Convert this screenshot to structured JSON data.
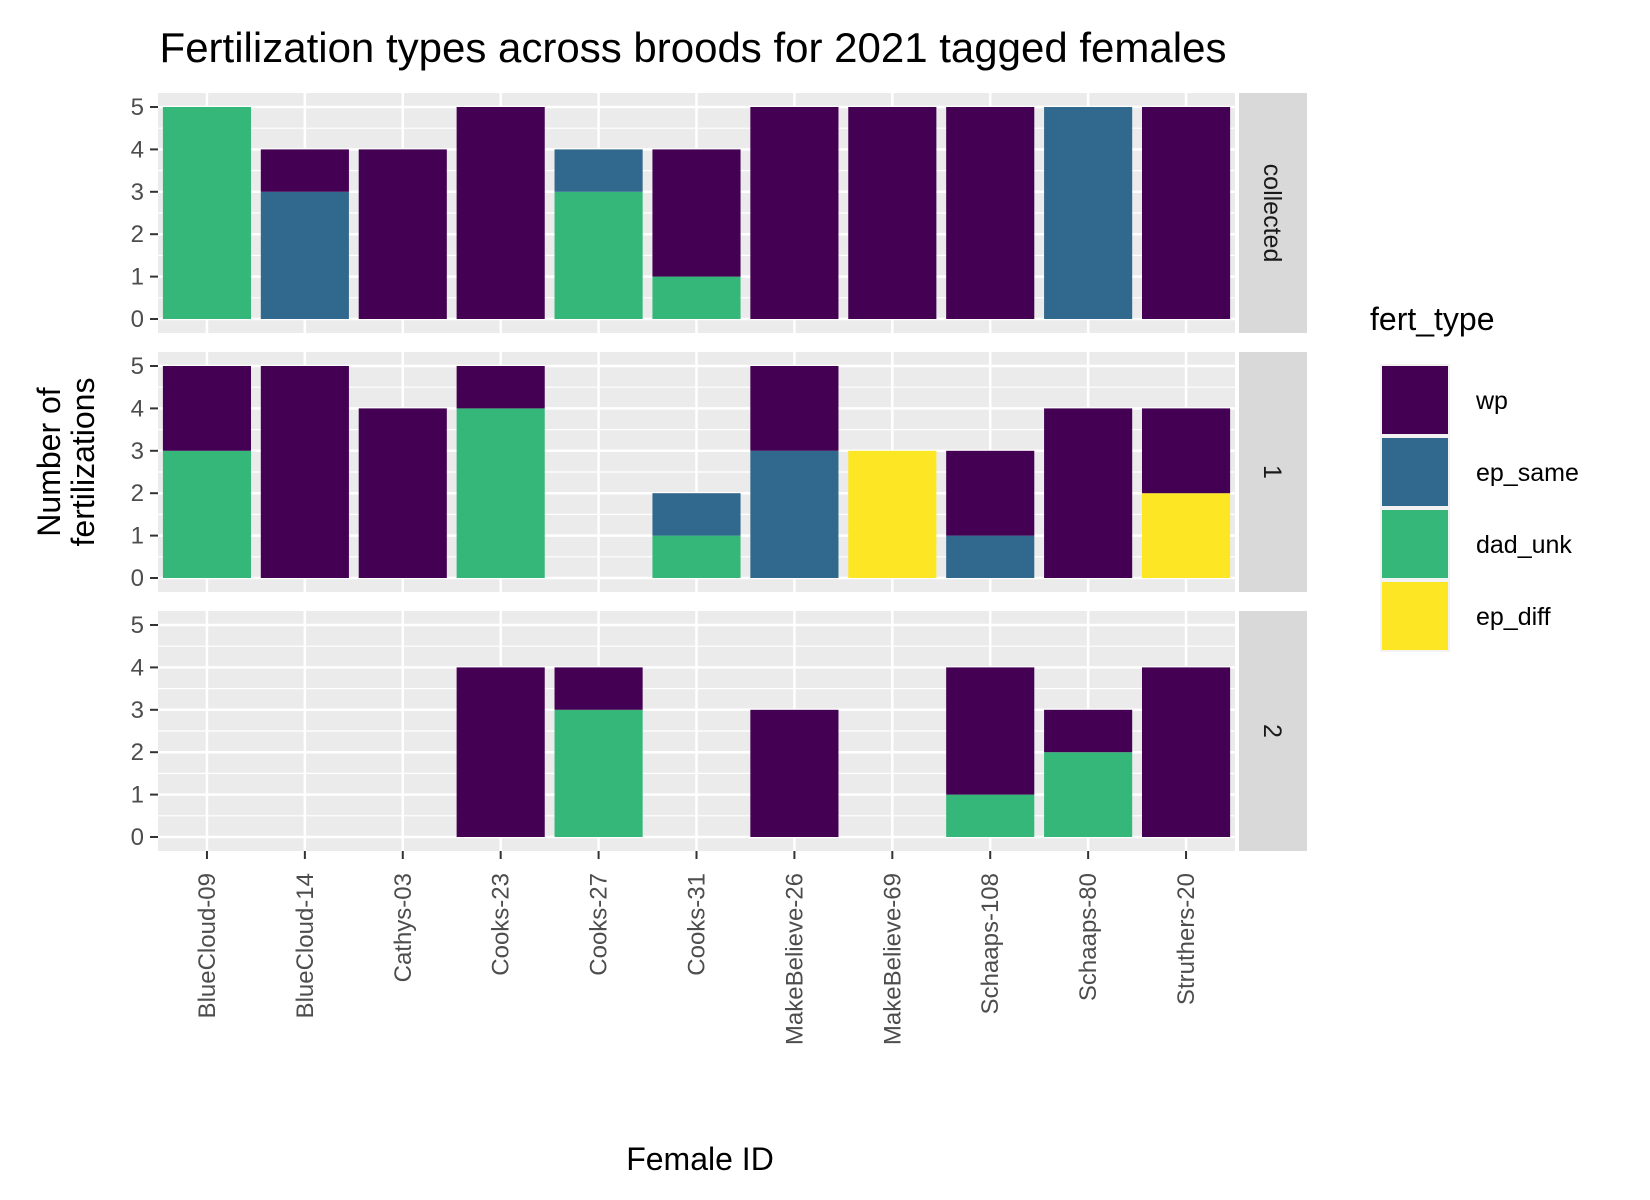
{
  "chart_data": {
    "type": "bar",
    "title": "Fertilization types across broods for 2021 tagged females",
    "xlabel": "Female ID",
    "ylabel": [
      "Number of",
      "fertilizations"
    ],
    "ylim": [
      0,
      5
    ],
    "yticks": [
      0,
      1,
      2,
      3,
      4,
      5
    ],
    "categories": [
      "BlueCloud-09",
      "BlueCloud-14",
      "Cathys-03",
      "Cooks-23",
      "Cooks-27",
      "Cooks-31",
      "MakeBelieve-26",
      "MakeBelieve-69",
      "Schaaps-108",
      "Schaaps-80",
      "Struthers-20"
    ],
    "legend": {
      "title": "fert_type",
      "position": "right",
      "entries": [
        "wp",
        "ep_same",
        "dad_unk",
        "ep_diff"
      ]
    },
    "colors": {
      "wp": "#440154",
      "ep_same": "#31688e",
      "dad_unk": "#35b779",
      "ep_diff": "#fde725"
    },
    "stack_order": [
      "ep_diff",
      "dad_unk",
      "ep_same",
      "wp"
    ],
    "panels": [
      {
        "label": "collected",
        "series": {
          "wp": [
            0,
            1,
            4,
            5,
            0,
            3,
            5,
            5,
            5,
            0,
            5
          ],
          "ep_same": [
            0,
            3,
            0,
            0,
            1,
            0,
            0,
            0,
            0,
            5,
            0
          ],
          "dad_unk": [
            5,
            0,
            0,
            0,
            3,
            1,
            0,
            0,
            0,
            0,
            0
          ],
          "ep_diff": [
            0,
            0,
            0,
            0,
            0,
            0,
            0,
            0,
            0,
            0,
            0
          ]
        }
      },
      {
        "label": "1",
        "series": {
          "wp": [
            2,
            5,
            4,
            1,
            0,
            0,
            2,
            0,
            2,
            4,
            2
          ],
          "ep_same": [
            0,
            0,
            0,
            0,
            0,
            1,
            3,
            0,
            1,
            0,
            0
          ],
          "dad_unk": [
            3,
            0,
            0,
            4,
            0,
            1,
            0,
            0,
            0,
            0,
            0
          ],
          "ep_diff": [
            0,
            0,
            0,
            0,
            0,
            0,
            0,
            3,
            0,
            0,
            2
          ]
        }
      },
      {
        "label": "2",
        "series": {
          "wp": [
            0,
            0,
            0,
            4,
            1,
            0,
            3,
            0,
            3,
            1,
            4
          ],
          "ep_same": [
            0,
            0,
            0,
            0,
            0,
            0,
            0,
            0,
            0,
            0,
            0
          ],
          "dad_unk": [
            0,
            0,
            0,
            0,
            3,
            0,
            0,
            0,
            1,
            2,
            0
          ],
          "ep_diff": [
            0,
            0,
            0,
            0,
            0,
            0,
            0,
            0,
            0,
            0,
            0
          ]
        }
      }
    ],
    "grid": true
  }
}
